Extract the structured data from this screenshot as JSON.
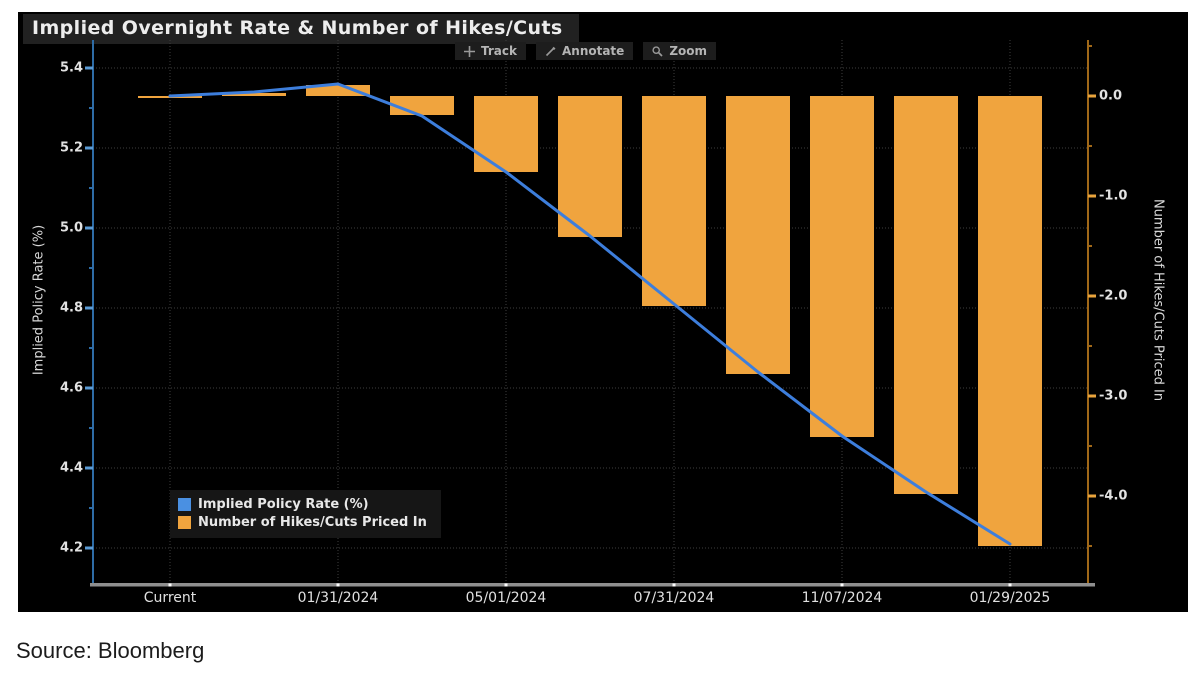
{
  "page": {
    "source_note": "Source: Bloomberg"
  },
  "chart": {
    "toolbar": [
      {
        "icon": "track-crosshair-icon",
        "label": "Track"
      },
      {
        "icon": "annotate-pencil-icon",
        "label": "Annotate"
      },
      {
        "icon": "zoom-magnifier-icon",
        "label": "Zoom"
      }
    ],
    "legend": [
      {
        "swatch_color": "#4a90e2",
        "label": "Implied Policy Rate (%)"
      },
      {
        "swatch_color": "#f0a43e",
        "label": "Number of Hikes/Cuts Priced In"
      }
    ],
    "colors": {
      "page_background": "#ffffff",
      "chart_background": "#000000",
      "title_bg": "#212121",
      "title_text": "#ededed",
      "grid": "#3e3e3e",
      "left_axis_line": "#2e6ca6",
      "left_axis_tick": "#5b9bd5",
      "right_axis_line": "#a06818",
      "right_axis_tick": "#e8a33c",
      "bottom_axis_line": "#8f8f8f",
      "x_tick_dot": "#ffffff",
      "line": "#3d7edc",
      "bar": "#f0a43e"
    }
  },
  "chart_data": {
    "type": "combo",
    "title": "Implied Overnight Rate & Number of Hikes/Cuts",
    "n_points": 11,
    "x_tick_labels": [
      "Current",
      "01/31/2024",
      "05/01/2024",
      "07/31/2024",
      "11/07/2024",
      "01/29/2025"
    ],
    "x_tick_indices": [
      0,
      2,
      4,
      6,
      8,
      10
    ],
    "series": [
      {
        "name": "Implied Policy Rate (%)",
        "type": "line",
        "axis": "left",
        "color": "#3d7edc",
        "values": [
          5.33,
          5.34,
          5.36,
          5.28,
          5.14,
          4.98,
          4.81,
          4.64,
          4.48,
          4.34,
          4.21
        ]
      },
      {
        "name": "Number of Hikes/Cuts Priced In",
        "type": "bar",
        "axis": "right",
        "color": "#f0a43e",
        "values": [
          0.0,
          0.03,
          0.11,
          -0.19,
          -0.76,
          -1.41,
          -2.1,
          -2.78,
          -3.41,
          -3.98,
          -4.5
        ]
      }
    ],
    "left_axis": {
      "label": "Implied Policy Rate (%)",
      "ticks": [
        "5.4",
        "5.2",
        "5.0",
        "4.8",
        "4.6",
        "4.4",
        "4.2"
      ],
      "minor_tick_step": 0.1,
      "range": [
        4.1125,
        5.47
      ]
    },
    "right_axis": {
      "label": "Number of Hikes/Cuts Priced In",
      "ticks": [
        "0.0",
        "-1.0",
        "-2.0",
        "-3.0",
        "-4.0"
      ],
      "minor_tick_step": 0.5,
      "zero_rate_alignment": 5.33,
      "rate_per_unit": 0.25
    },
    "grid": true,
    "legend_position": "inside-bottom-left"
  }
}
